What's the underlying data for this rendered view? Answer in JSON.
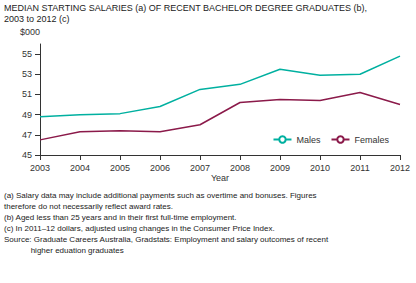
{
  "chart_data": {
    "type": "line",
    "title": "MEDIAN STARTING SALARIES (a) OF RECENT BACHELOR DEGREE GRADUATES (b),",
    "subtitle": "2003 to 2012 (c)",
    "x": [
      2003,
      2004,
      2005,
      2006,
      2007,
      2008,
      2009,
      2010,
      2011,
      2012
    ],
    "series": [
      {
        "name": "Males",
        "color": "#00B0A0",
        "values": [
          48.8,
          49.0,
          49.1,
          49.8,
          51.5,
          52.0,
          53.5,
          52.9,
          53.0,
          54.8
        ]
      },
      {
        "name": "Females",
        "color": "#8B1A4A",
        "values": [
          46.5,
          47.3,
          47.4,
          47.3,
          48.0,
          50.2,
          50.5,
          50.4,
          51.2,
          50.0
        ]
      }
    ],
    "xlabel": "Year",
    "ylabel": "$000",
    "xlim": [
      2003,
      2012
    ],
    "xticks": [
      2003,
      2004,
      2005,
      2006,
      2007,
      2008,
      2009,
      2010,
      2011,
      2012
    ],
    "ylim": [
      45,
      56
    ],
    "yticks": [
      45,
      47,
      49,
      51,
      53,
      55
    ],
    "grid": false,
    "legend": "lower right",
    "annotations": [
      "(a) Salary data may include additional payments such as overtime and bonuses. Figures",
      "therefore do not necessarily reflect award rates.",
      "(b) Aged less than 25 years and in their first full-time employment.",
      "(c) In 2011–12 dollars, adjusted using changes in the Consumer Price Index.",
      "Source: Graduate Careers Australia, Gradstats: Employment and salary outcomes of recent",
      "            higher eduation graduates"
    ]
  }
}
